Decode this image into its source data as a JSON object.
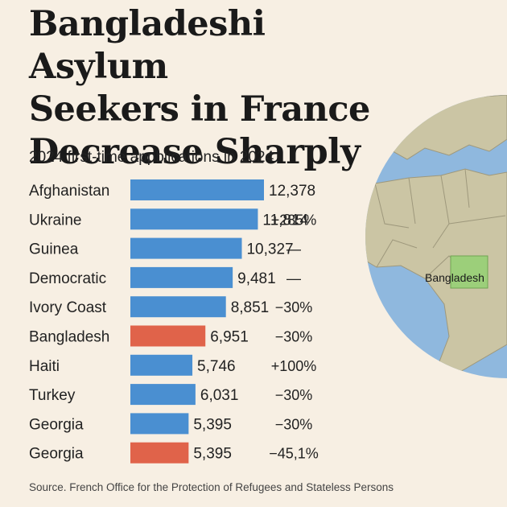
{
  "header": {
    "title_lines": [
      "Bangladeshi Asylum",
      "Seekers in France",
      "Decrease Sharply"
    ]
  },
  "map": {
    "highlight_label": "Bangladesh",
    "ocean_color": "#8fb8de",
    "land_color": "#cbc5a4",
    "highlight_color": "#9ccf7a"
  },
  "chart_data": {
    "type": "bar",
    "orientation": "horizontal",
    "title": "2024 first-time appblications in 2024",
    "categories": [
      "Afghanistan",
      "Ukraine",
      "Guinea",
      "Democratic",
      "Ivory Coast",
      "Bangladesh",
      "Haiti",
      "Turkey",
      "Georgia",
      "Georgia"
    ],
    "values": [
      12378,
      11814,
      10327,
      9481,
      8851,
      6951,
      5746,
      6031,
      5395,
      5395
    ],
    "value_labels": [
      "12,378",
      "11,814",
      "10,327",
      "9,481",
      "8,851",
      "6,951",
      "5,746",
      "6,031",
      "5,395",
      "5,395"
    ],
    "change_labels": [
      "",
      "+285%",
      "—",
      "—",
      "−30%",
      "−30%",
      "+100%",
      "−30%",
      "−30%",
      "−45,1%"
    ],
    "highlight": [
      false,
      false,
      false,
      false,
      false,
      true,
      false,
      false,
      false,
      true
    ],
    "colors": {
      "bar": "#4a8fd1",
      "highlight": "#e0634a"
    },
    "xlabel": "",
    "ylabel": ""
  },
  "footer": {
    "source": "Source. French Office for the Protection of Refugees and Stateless Persons"
  }
}
